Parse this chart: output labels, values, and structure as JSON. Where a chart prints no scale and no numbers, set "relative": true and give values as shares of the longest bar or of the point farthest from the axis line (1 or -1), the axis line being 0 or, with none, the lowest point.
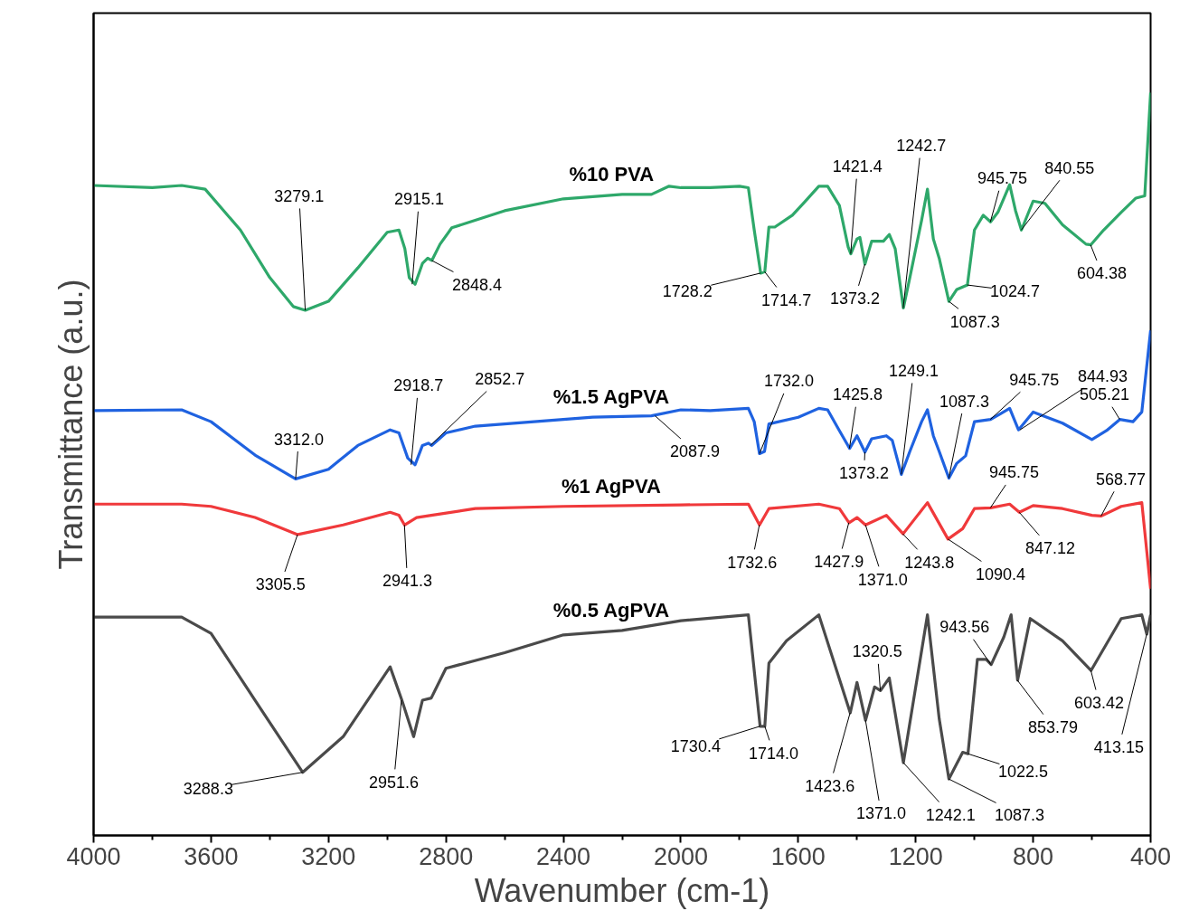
{
  "chart_data": {
    "type": "line",
    "relative": true,
    "xlabel": "Wavenumber (cm-1)",
    "ylabel": "Transmittance (a.u.)",
    "xlim": [
      4000,
      400
    ],
    "xticks": [
      4000,
      3600,
      3200,
      2800,
      2400,
      2000,
      1600,
      1200,
      800,
      400
    ],
    "grid": false,
    "legend": false,
    "marker": "none",
    "line_style": "solid",
    "series": [
      {
        "name": "%10 PVA",
        "color": "#2ea86a",
        "x": [
          4000,
          3800,
          3700,
          3620,
          3500,
          3400,
          3320,
          3279,
          3200,
          3100,
          3000,
          2960,
          2940,
          2925,
          2905,
          2880,
          2862,
          2848,
          2820,
          2780,
          2600,
          2400,
          2200,
          2100,
          2040,
          2000,
          1900,
          1800,
          1770,
          1750,
          1728,
          1714,
          1700,
          1680,
          1620,
          1580,
          1530,
          1500,
          1460,
          1430,
          1421,
          1400,
          1390,
          1373,
          1350,
          1310,
          1290,
          1270,
          1242,
          1220,
          1180,
          1160,
          1140,
          1120,
          1087,
          1060,
          1024,
          1000,
          970,
          945,
          920,
          880,
          860,
          840,
          800,
          760,
          700,
          620,
          604,
          560,
          500,
          450,
          420,
          400
        ],
        "values": [
          0.875,
          0.872,
          0.875,
          0.87,
          0.815,
          0.751,
          0.712,
          0.707,
          0.719,
          0.764,
          0.812,
          0.815,
          0.79,
          0.751,
          0.742,
          0.77,
          0.777,
          0.774,
          0.796,
          0.818,
          0.841,
          0.857,
          0.863,
          0.863,
          0.874,
          0.872,
          0.872,
          0.874,
          0.872,
          0.815,
          0.757,
          0.759,
          0.819,
          0.819,
          0.835,
          0.852,
          0.874,
          0.874,
          0.848,
          0.792,
          0.783,
          0.803,
          0.805,
          0.769,
          0.8,
          0.8,
          0.809,
          0.79,
          0.71,
          0.751,
          0.828,
          0.87,
          0.803,
          0.777,
          0.719,
          0.735,
          0.741,
          0.815,
          0.835,
          0.826,
          0.839,
          0.876,
          0.841,
          0.815,
          0.854,
          0.851,
          0.822,
          0.796,
          0.795,
          0.815,
          0.839,
          0.858,
          0.861,
          1.0
        ]
      },
      {
        "name": "%1.5 AgPVA",
        "color": "#1f62e0",
        "x": [
          4000,
          3700,
          3600,
          3450,
          3312,
          3200,
          3100,
          2990,
          2960,
          2930,
          2905,
          2880,
          2860,
          2848,
          2800,
          2700,
          2500,
          2300,
          2100,
          2000,
          1900,
          1770,
          1750,
          1732,
          1715,
          1700,
          1600,
          1530,
          1500,
          1460,
          1425,
          1400,
          1373,
          1350,
          1300,
          1280,
          1249,
          1220,
          1180,
          1160,
          1140,
          1120,
          1087,
          1060,
          1030,
          1000,
          945,
          910,
          880,
          850,
          800,
          700,
          600,
          550,
          505,
          460,
          430,
          400
        ],
        "values": [
          0.572,
          0.573,
          0.557,
          0.512,
          0.48,
          0.493,
          0.525,
          0.546,
          0.542,
          0.508,
          0.499,
          0.525,
          0.528,
          0.525,
          0.542,
          0.551,
          0.557,
          0.563,
          0.565,
          0.573,
          0.572,
          0.575,
          0.557,
          0.514,
          0.517,
          0.554,
          0.563,
          0.575,
          0.573,
          0.545,
          0.521,
          0.538,
          0.516,
          0.534,
          0.538,
          0.532,
          0.486,
          0.517,
          0.557,
          0.573,
          0.538,
          0.517,
          0.481,
          0.501,
          0.511,
          0.557,
          0.56,
          0.568,
          0.575,
          0.546,
          0.57,
          0.555,
          0.533,
          0.545,
          0.56,
          0.557,
          0.57,
          0.68
        ]
      },
      {
        "name": "%1 AgPVA",
        "color": "#f0393b",
        "x": [
          4000,
          3700,
          3600,
          3450,
          3305,
          3150,
          2990,
          2960,
          2941,
          2900,
          2850,
          2700,
          2400,
          2000,
          1770,
          1732,
          1700,
          1530,
          1460,
          1427,
          1400,
          1371,
          1300,
          1243,
          1160,
          1090,
          1040,
          1000,
          945,
          880,
          847,
          800,
          700,
          600,
          568,
          500,
          430,
          400
        ],
        "values": [
          0.446,
          0.446,
          0.443,
          0.428,
          0.405,
          0.418,
          0.435,
          0.431,
          0.418,
          0.428,
          0.431,
          0.44,
          0.443,
          0.445,
          0.446,
          0.418,
          0.44,
          0.446,
          0.44,
          0.421,
          0.428,
          0.418,
          0.431,
          0.406,
          0.448,
          0.399,
          0.413,
          0.44,
          0.441,
          0.446,
          0.435,
          0.444,
          0.44,
          0.431,
          0.43,
          0.443,
          0.448,
          0.332
        ]
      },
      {
        "name": "%0.5 AgPVA",
        "color": "#4a4a4a",
        "x": [
          4000,
          3700,
          3600,
          3450,
          3288,
          3150,
          2990,
          2950,
          2910,
          2880,
          2850,
          2800,
          2600,
          2400,
          2200,
          2000,
          1770,
          1730,
          1714,
          1700,
          1640,
          1530,
          1423,
          1400,
          1371,
          1340,
          1320,
          1290,
          1242,
          1160,
          1120,
          1087,
          1040,
          1022,
          990,
          960,
          943,
          900,
          875,
          853,
          810,
          700,
          603,
          500,
          430,
          413,
          400
        ],
        "values": [
          0.294,
          0.294,
          0.272,
          0.182,
          0.085,
          0.133,
          0.227,
          0.182,
          0.133,
          0.182,
          0.185,
          0.225,
          0.246,
          0.27,
          0.276,
          0.289,
          0.297,
          0.147,
          0.147,
          0.232,
          0.262,
          0.297,
          0.165,
          0.206,
          0.155,
          0.2,
          0.195,
          0.212,
          0.098,
          0.297,
          0.157,
          0.076,
          0.112,
          0.11,
          0.237,
          0.237,
          0.23,
          0.267,
          0.297,
          0.209,
          0.292,
          0.262,
          0.222,
          0.292,
          0.297,
          0.271,
          0.297
        ]
      }
    ],
    "annotations": [
      {
        "text": "3279.1",
        "x": 3279.1,
        "y": 0.707
      },
      {
        "text": "2915.1",
        "x": 2915.1,
        "y": 0.742
      },
      {
        "text": "2848.4",
        "x": 2848.4,
        "y": 0.774
      },
      {
        "text": "1728.2",
        "x": 1728.2,
        "y": 0.757
      },
      {
        "text": "1714.7",
        "x": 1714.7,
        "y": 0.759
      },
      {
        "text": "1421.4",
        "x": 1421.4,
        "y": 0.783
      },
      {
        "text": "1373.2",
        "x": 1373.2,
        "y": 0.769
      },
      {
        "text": "1242.7",
        "x": 1242.7,
        "y": 0.71
      },
      {
        "text": "1087.3",
        "x": 1087.3,
        "y": 0.719
      },
      {
        "text": "1024.7",
        "x": 1024.7,
        "y": 0.741
      },
      {
        "text": "945.75",
        "x": 945.75,
        "y": 0.826
      },
      {
        "text": "840.55",
        "x": 840.55,
        "y": 0.815
      },
      {
        "text": "604.38",
        "x": 604.38,
        "y": 0.795
      },
      {
        "text": "3312.0",
        "x": 3312.0,
        "y": 0.48
      },
      {
        "text": "2918.7",
        "x": 2918.7,
        "y": 0.499
      },
      {
        "text": "2852.7",
        "x": 2852.7,
        "y": 0.525
      },
      {
        "text": "2087.9",
        "x": 2087.9,
        "y": 0.565
      },
      {
        "text": "1732.0",
        "x": 1732.0,
        "y": 0.514
      },
      {
        "text": "1425.8",
        "x": 1425.8,
        "y": 0.521
      },
      {
        "text": "1373.2",
        "x": 1373.2,
        "y": 0.516
      },
      {
        "text": "1249.1",
        "x": 1249.1,
        "y": 0.486
      },
      {
        "text": "1087.3",
        "x": 1087.3,
        "y": 0.481
      },
      {
        "text": "945.75",
        "x": 945.75,
        "y": 0.56
      },
      {
        "text": "844.93",
        "x": 844.93,
        "y": 0.546
      },
      {
        "text": "505.21",
        "x": 505.21,
        "y": 0.56
      },
      {
        "text": "3305.5",
        "x": 3305.5,
        "y": 0.405
      },
      {
        "text": "2941.3",
        "x": 2941.3,
        "y": 0.418
      },
      {
        "text": "1732.6",
        "x": 1732.6,
        "y": 0.418
      },
      {
        "text": "1427.9",
        "x": 1427.9,
        "y": 0.421
      },
      {
        "text": "1371.0",
        "x": 1371.0,
        "y": 0.418
      },
      {
        "text": "1243.8",
        "x": 1243.8,
        "y": 0.406
      },
      {
        "text": "1090.4",
        "x": 1090.4,
        "y": 0.399
      },
      {
        "text": "945.75",
        "x": 945.75,
        "y": 0.441
      },
      {
        "text": "847.12",
        "x": 847.12,
        "y": 0.435
      },
      {
        "text": "568.77",
        "x": 568.77,
        "y": 0.43
      },
      {
        "text": "3288.3",
        "x": 3288.3,
        "y": 0.085
      },
      {
        "text": "2951.6",
        "x": 2951.6,
        "y": 0.182
      },
      {
        "text": "1730.4",
        "x": 1730.4,
        "y": 0.147
      },
      {
        "text": "1714.0",
        "x": 1714.0,
        "y": 0.147
      },
      {
        "text": "1423.6",
        "x": 1423.6,
        "y": 0.165
      },
      {
        "text": "1371.0",
        "x": 1371.0,
        "y": 0.155
      },
      {
        "text": "1320.5",
        "x": 1320.5,
        "y": 0.195
      },
      {
        "text": "1242.1",
        "x": 1242.1,
        "y": 0.098
      },
      {
        "text": "1087.3",
        "x": 1087.3,
        "y": 0.076
      },
      {
        "text": "943.56",
        "x": 943.56,
        "y": 0.23
      },
      {
        "text": "1022.5",
        "x": 1022.5,
        "y": 0.11
      },
      {
        "text": "853.79",
        "x": 853.79,
        "y": 0.209
      },
      {
        "text": "603.42",
        "x": 603.42,
        "y": 0.222
      },
      {
        "text": "413.15",
        "x": 413.15,
        "y": 0.271
      }
    ]
  }
}
